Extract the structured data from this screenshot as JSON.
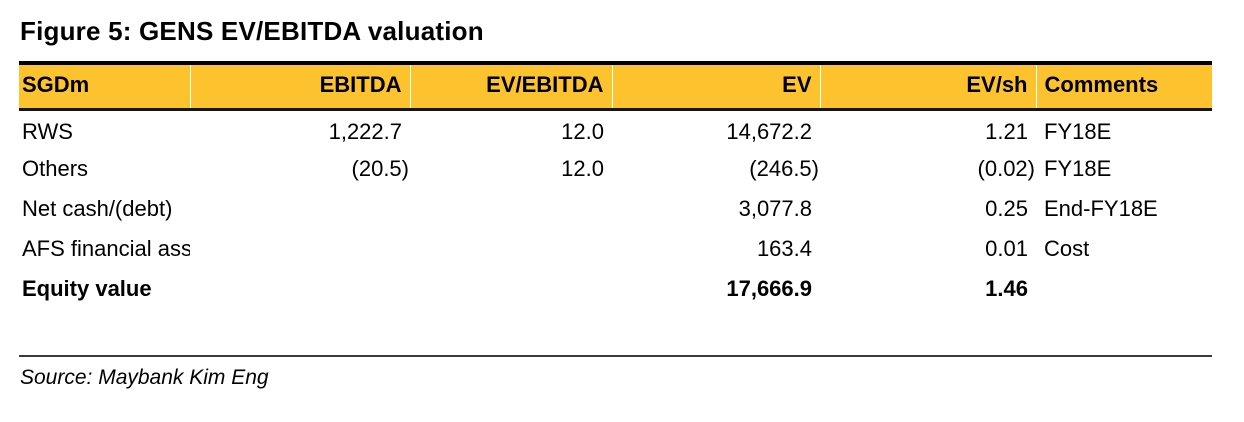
{
  "figure": {
    "title": "Figure 5: GENS EV/EBITDA valuation",
    "source": "Source: Maybank Kim Eng",
    "accent_color": "#FDC32F"
  },
  "table": {
    "columns": [
      "SGDm",
      "EBITDA",
      "EV/EBITDA",
      "EV",
      "EV/sh",
      "Comments"
    ],
    "rows": [
      {
        "label": "RWS",
        "ebitda": "1,222.7",
        "ev_ebitda": "12.0",
        "ev": "14,672.2",
        "ev_sh": "1.21",
        "comments": "FY18E"
      },
      {
        "label": "Others",
        "ebitda": "(20.5)",
        "ev_ebitda": "12.0",
        "ev": "(246.5)",
        "ev_sh": "(0.02)",
        "comments": "FY18E"
      },
      {
        "label": "Net cash/(debt)",
        "ebitda": "",
        "ev_ebitda": "",
        "ev": "3,077.8",
        "ev_sh": "0.25",
        "comments": "End-FY18E"
      },
      {
        "label": "AFS financial assets",
        "ebitda": "",
        "ev_ebitda": "",
        "ev": "163.4",
        "ev_sh": "0.01",
        "comments": "Cost"
      },
      {
        "label": "Equity value",
        "ebitda": "",
        "ev_ebitda": "",
        "ev": "17,666.9",
        "ev_sh": "1.46",
        "comments": ""
      }
    ]
  }
}
